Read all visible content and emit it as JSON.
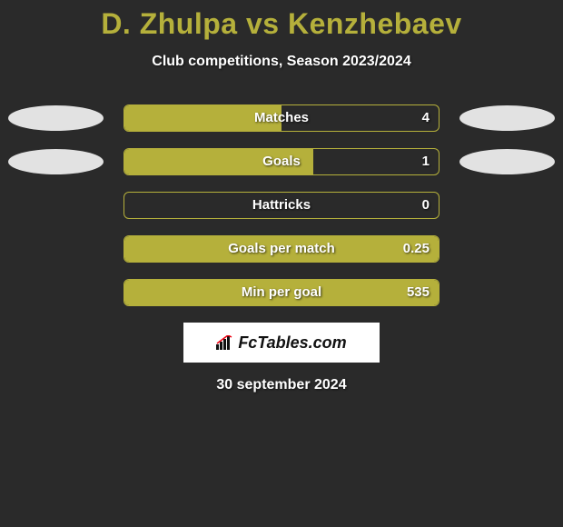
{
  "title": "D. Zhulpa vs Kenzhebaev",
  "subtitle": "Club competitions, Season 2023/2024",
  "date": "30 september 2024",
  "logo_text": "FcTables.com",
  "colors": {
    "background": "#2a2a2a",
    "accent": "#b5b03b",
    "ellipse": "#e2e2e2",
    "text": "#ffffff"
  },
  "stats": [
    {
      "label": "Matches",
      "value": "4",
      "fill_pct": 50,
      "left_ellipse": true,
      "right_ellipse": true
    },
    {
      "label": "Goals",
      "value": "1",
      "fill_pct": 60,
      "left_ellipse": true,
      "right_ellipse": true
    },
    {
      "label": "Hattricks",
      "value": "0",
      "fill_pct": 0,
      "left_ellipse": false,
      "right_ellipse": false
    },
    {
      "label": "Goals per match",
      "value": "0.25",
      "fill_pct": 100,
      "left_ellipse": false,
      "right_ellipse": false
    },
    {
      "label": "Min per goal",
      "value": "535",
      "fill_pct": 100,
      "left_ellipse": false,
      "right_ellipse": false
    }
  ]
}
